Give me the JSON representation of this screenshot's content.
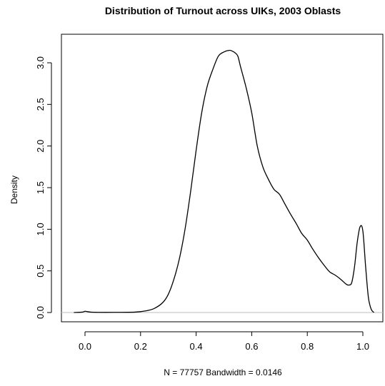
{
  "chart_data": {
    "type": "line",
    "title": "Distribution of Turnout across UIKs, 2003 Oblasts",
    "xlabel": "N = 77757   Bandwidth = 0.0146",
    "ylabel": "Density",
    "xlim": [
      -0.05,
      1.05
    ],
    "ylim": [
      0,
      3.2
    ],
    "x_ticks": [
      0.0,
      0.2,
      0.4,
      0.6,
      0.8,
      1.0
    ],
    "x_tick_labels": [
      "0.0",
      "0.2",
      "0.4",
      "0.6",
      "0.8",
      "1.0"
    ],
    "y_ticks": [
      0.0,
      0.5,
      1.0,
      1.5,
      2.0,
      2.5,
      3.0
    ],
    "y_tick_labels": [
      "0.0",
      "0.5",
      "1.0",
      "1.5",
      "2.0",
      "2.5",
      "3.0"
    ],
    "baseline": 0,
    "series": [
      {
        "x": [
          -0.04,
          -0.01,
          0.0,
          0.01,
          0.03,
          0.1,
          0.18,
          0.22,
          0.25,
          0.28,
          0.3,
          0.32,
          0.34,
          0.36,
          0.38,
          0.4,
          0.42,
          0.44,
          0.46,
          0.48,
          0.5,
          0.52,
          0.53,
          0.54,
          0.55,
          0.56,
          0.58,
          0.6,
          0.62,
          0.64,
          0.66,
          0.68,
          0.7,
          0.72,
          0.74,
          0.76,
          0.78,
          0.8,
          0.82,
          0.84,
          0.86,
          0.88,
          0.9,
          0.92,
          0.94,
          0.95,
          0.96,
          0.97,
          0.98,
          0.99,
          1.0,
          1.01,
          1.02,
          1.03,
          1.04
        ],
        "y": [
          0.0,
          0.005,
          0.015,
          0.01,
          0.003,
          0.002,
          0.005,
          0.02,
          0.05,
          0.12,
          0.22,
          0.4,
          0.65,
          1.0,
          1.45,
          1.95,
          2.4,
          2.72,
          2.92,
          3.08,
          3.13,
          3.15,
          3.14,
          3.12,
          3.08,
          2.95,
          2.7,
          2.4,
          2.0,
          1.75,
          1.6,
          1.48,
          1.42,
          1.3,
          1.18,
          1.07,
          0.95,
          0.87,
          0.76,
          0.66,
          0.57,
          0.49,
          0.45,
          0.4,
          0.34,
          0.33,
          0.36,
          0.55,
          0.85,
          1.03,
          0.98,
          0.55,
          0.18,
          0.04,
          0.0
        ]
      }
    ]
  }
}
